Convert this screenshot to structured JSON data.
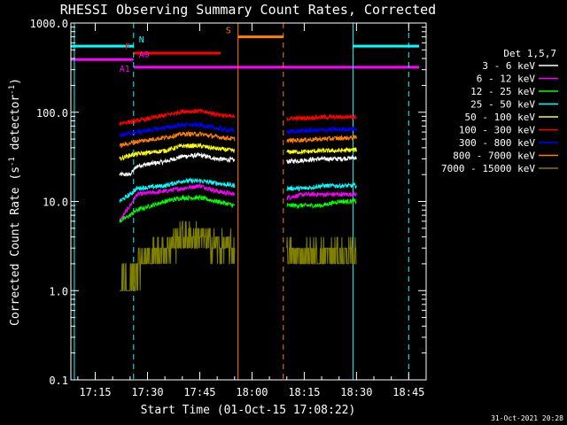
{
  "chart_data": {
    "type": "line",
    "title": "RHESSI Observing Summary Count Rates, Corrected",
    "xlabel": "Start Time (01-Oct-15 17:08:22)",
    "ylabel": "Corrected Count Rate (s⁻¹ detector⁻¹)",
    "ylabel_prefix": "Corrected Count Rate (s",
    "ylabel_mid": " detector",
    "ylabel_sup": "-1",
    "ylabel_suffix": ")",
    "yscale": "log",
    "ylim": [
      0.1,
      1000
    ],
    "xlim": [
      "17:08",
      "18:50"
    ],
    "y_ticks": [
      "0.1",
      "1.0",
      "10.0",
      "100.0",
      "1000.0"
    ],
    "x_ticks": [
      "17:15",
      "17:30",
      "17:45",
      "18:00",
      "18:15",
      "18:30",
      "18:45"
    ],
    "legend_title": "Det 1,5,7",
    "legend_position": "right",
    "date_stamp": "31-Oct-2021 20:28",
    "series": [
      {
        "name": "3 - 6 keV",
        "color": "#ffffff",
        "segments": [
          {
            "x": [
              "17:22",
              "17:25",
              "17:27",
              "17:35",
              "17:40",
              "17:45",
              "17:50",
              "17:55"
            ],
            "y": [
              20,
              20,
              25,
              28,
              32,
              33,
              30,
              29
            ]
          },
          {
            "x": [
              "18:10",
              "18:15",
              "18:20",
              "18:25",
              "18:30"
            ],
            "y": [
              28,
              29,
              30,
              30,
              31
            ]
          }
        ]
      },
      {
        "name": "6 - 12 keV",
        "color": "#ff00ff",
        "segments": [
          {
            "x": [
              "17:22",
              "17:25",
              "17:27",
              "17:35",
              "17:40",
              "17:45",
              "17:50",
              "17:55"
            ],
            "y": [
              6,
              9,
              12,
              13,
              14,
              15,
              13,
              12
            ]
          },
          {
            "x": [
              "18:10",
              "18:15",
              "18:20",
              "18:25",
              "18:30"
            ],
            "y": [
              11,
              12,
              12,
              12,
              12
            ]
          }
        ]
      },
      {
        "name": "12 - 25 keV",
        "color": "#00ff00",
        "segments": [
          {
            "x": [
              "17:22",
              "17:25",
              "17:27",
              "17:35",
              "17:40",
              "17:45",
              "17:50",
              "17:55"
            ],
            "y": [
              6,
              7,
              8,
              10,
              11,
              11,
              10,
              9
            ]
          },
          {
            "x": [
              "18:10",
              "18:15",
              "18:20",
              "18:25",
              "18:30"
            ],
            "y": [
              9,
              9,
              9,
              10,
              10
            ]
          }
        ]
      },
      {
        "name": "25 - 50 keV",
        "color": "#00ffff",
        "segments": [
          {
            "x": [
              "17:22",
              "17:25",
              "17:27",
              "17:35",
              "17:40",
              "17:45",
              "17:50",
              "17:55"
            ],
            "y": [
              10,
              12,
              14,
              15,
              17,
              17,
              16,
              15
            ]
          },
          {
            "x": [
              "18:10",
              "18:15",
              "18:20",
              "18:25",
              "18:30"
            ],
            "y": [
              14,
              14,
              15,
              15,
              15
            ]
          }
        ]
      },
      {
        "name": "50 - 100 keV",
        "color": "#ffff00",
        "segments": [
          {
            "x": [
              "17:22",
              "17:25",
              "17:27",
              "17:35",
              "17:40",
              "17:45",
              "17:50",
              "17:55"
            ],
            "y": [
              30,
              33,
              34,
              37,
              42,
              42,
              39,
              37
            ]
          },
          {
            "x": [
              "18:10",
              "18:15",
              "18:20",
              "18:25",
              "18:30"
            ],
            "y": [
              36,
              36,
              37,
              37,
              38
            ]
          }
        ]
      },
      {
        "name": "100 - 300 keV",
        "color": "#ff0000",
        "segments": [
          {
            "x": [
              "17:22",
              "17:25",
              "17:27",
              "17:35",
              "17:40",
              "17:45",
              "17:50",
              "17:55"
            ],
            "y": [
              75,
              78,
              80,
              92,
              102,
              103,
              95,
              88
            ]
          },
          {
            "x": [
              "18:10",
              "18:15",
              "18:20",
              "18:25",
              "18:30"
            ],
            "y": [
              85,
              86,
              88,
              88,
              90
            ]
          }
        ]
      },
      {
        "name": "300 - 800 keV",
        "color": "#0000ff",
        "segments": [
          {
            "x": [
              "17:22",
              "17:25",
              "17:27",
              "17:35",
              "17:40",
              "17:45",
              "17:50",
              "17:55"
            ],
            "y": [
              55,
              58,
              60,
              67,
              72,
              72,
              66,
              62
            ]
          },
          {
            "x": [
              "18:10",
              "18:15",
              "18:20",
              "18:25",
              "18:30"
            ],
            "y": [
              60,
              62,
              63,
              64,
              65
            ]
          }
        ]
      },
      {
        "name": "800 - 7000 keV",
        "color": "#ff7f00",
        "segments": [
          {
            "x": [
              "17:22",
              "17:25",
              "17:27",
              "17:35",
              "17:40",
              "17:45",
              "17:50",
              "17:55"
            ],
            "y": [
              42,
              45,
              47,
              52,
              57,
              57,
              53,
              50
            ]
          },
          {
            "x": [
              "18:10",
              "18:15",
              "18:20",
              "18:25",
              "18:30"
            ],
            "y": [
              48,
              49,
              50,
              51,
              52
            ]
          }
        ]
      },
      {
        "name": "7000 - 15000 keV",
        "color": "#808000",
        "segments": [
          {
            "x": [
              "17:22",
              "17:25",
              "17:27",
              "17:35",
              "17:40",
              "17:45",
              "17:50",
              "17:55"
            ],
            "y": [
              1.2,
              1.5,
              2,
              3,
              4,
              4,
              3.2,
              3
            ]
          },
          {
            "x": [
              "18:10",
              "18:15",
              "18:20",
              "18:25",
              "18:30"
            ],
            "y": [
              2.5,
              2.5,
              2.5,
              2.5,
              2.5
            ]
          }
        ]
      }
    ],
    "flag_bars": [
      {
        "label": "N",
        "color": "#00ffff",
        "y": 550,
        "spans": [
          [
            "17:08",
            "17:26"
          ],
          [
            "18:29",
            "18:48"
          ]
        ]
      },
      {
        "label": "F",
        "color": "#ff0000",
        "y": 460,
        "spans": [
          [
            "17:26",
            "17:51"
          ]
        ]
      },
      {
        "label": "S",
        "color": "#ff7f00",
        "y": 700,
        "spans": [
          [
            "17:56",
            "18:09"
          ]
        ]
      },
      {
        "label": "A0",
        "color": "#ff00ff",
        "y": 390,
        "spans": [
          [
            "17:08",
            "17:26"
          ]
        ]
      },
      {
        "label": "A1",
        "color": "#ff00ff",
        "y": 320,
        "spans": [
          [
            "17:26",
            "18:48"
          ]
        ]
      }
    ],
    "vertical_markers": [
      {
        "x": "17:09",
        "color": "#00ffff",
        "style": "solid"
      },
      {
        "x": "17:26",
        "color": "#00ffff",
        "style": "dashed"
      },
      {
        "x": "17:56",
        "color": "#ff7f00",
        "style": "solid"
      },
      {
        "x": "18:09",
        "color": "#ff7f00",
        "style": "dashed"
      },
      {
        "x": "18:29",
        "color": "#00ffff",
        "style": "solid"
      },
      {
        "x": "18:45",
        "color": "#00ffff",
        "style": "dashed"
      }
    ]
  }
}
